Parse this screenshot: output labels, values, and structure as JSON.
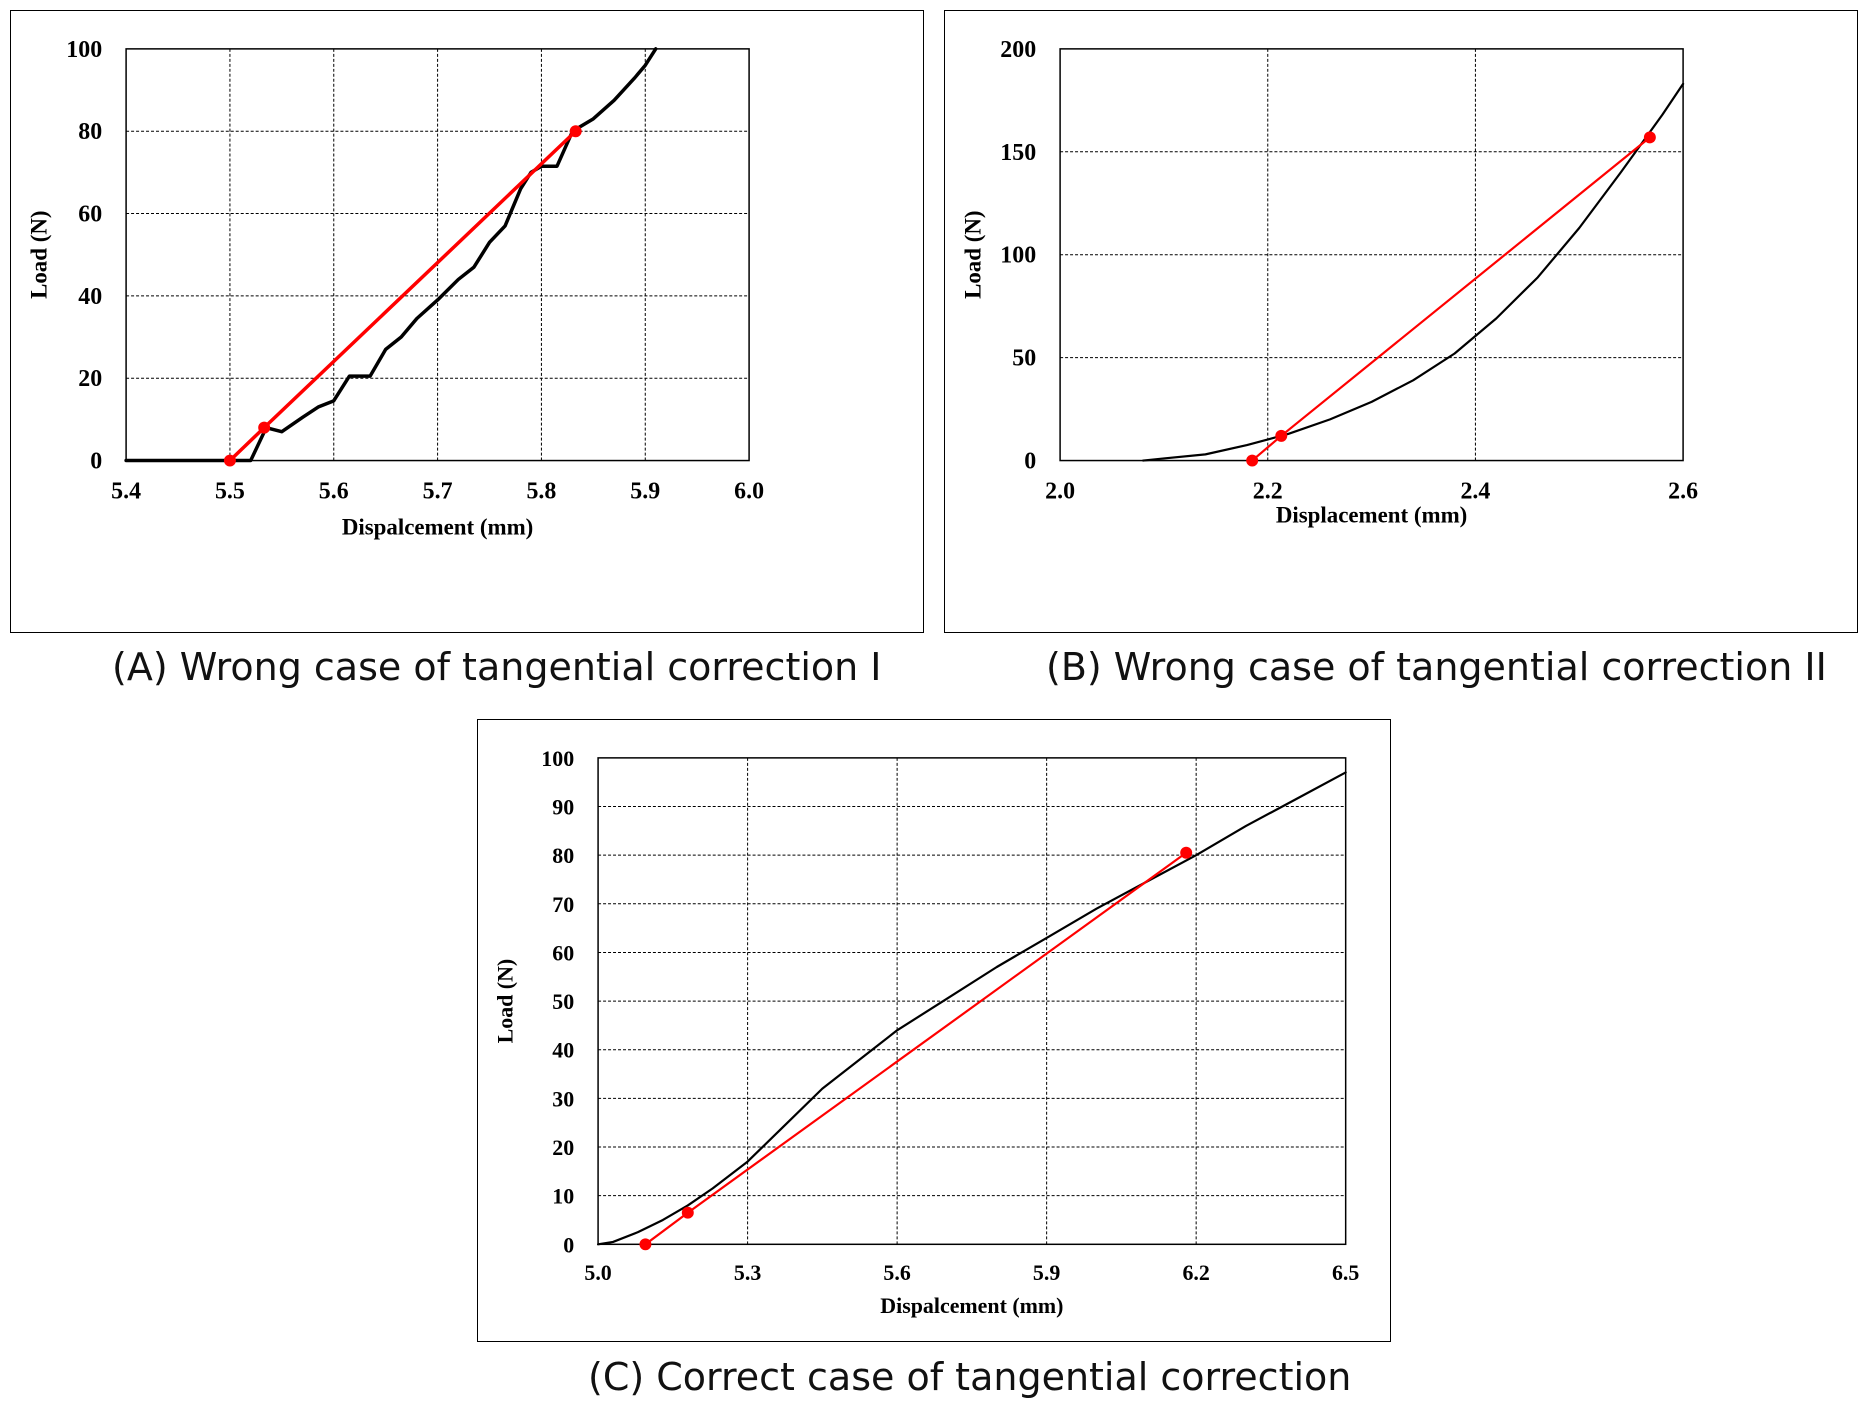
{
  "colors": {
    "curve": "#000000",
    "tangent": "#ff0000",
    "grid": "#000000"
  },
  "chart_data": [
    {
      "id": "a",
      "type": "line",
      "caption": "(A) Wrong case of tangential correction I",
      "xlabel": "Dispalcement   (mm)",
      "ylabel": "Load   (N)",
      "xlim": [
        5.4,
        6.0
      ],
      "ylim": [
        0,
        100
      ],
      "x_ticks": [
        5.4,
        5.5,
        5.6,
        5.7,
        5.8,
        5.9,
        6.0
      ],
      "x_tick_labels": [
        "5.4",
        "5.5",
        "5.6",
        "5.7",
        "5.8",
        "5.9",
        "6.0"
      ],
      "y_ticks": [
        0,
        20,
        40,
        60,
        80,
        100
      ],
      "y_tick_labels": [
        "0",
        "20",
        "40",
        "60",
        "80",
        "100"
      ],
      "grid": true,
      "series": [
        {
          "role": "curve",
          "x": [
            5.4,
            5.52,
            5.535,
            5.55,
            5.57,
            5.585,
            5.6,
            5.615,
            5.635,
            5.65,
            5.665,
            5.68,
            5.7,
            5.72,
            5.735,
            5.75,
            5.765,
            5.78,
            5.79,
            5.8,
            5.815,
            5.83,
            5.85,
            5.87,
            5.89,
            5.9,
            5.91
          ],
          "y": [
            0,
            0,
            8,
            7,
            10.5,
            13,
            14.5,
            20.5,
            20.5,
            27,
            30,
            34.5,
            39,
            44,
            47,
            53,
            57,
            66,
            70,
            71.5,
            71.5,
            80,
            83,
            87.5,
            93,
            96,
            100
          ]
        },
        {
          "role": "tangent",
          "x": [
            5.5,
            5.533,
            5.833
          ],
          "y": [
            0,
            8,
            80
          ],
          "markers": [
            true,
            true,
            true
          ]
        }
      ]
    },
    {
      "id": "b",
      "type": "line",
      "caption": "(B) Wrong case of tangential correction II",
      "xlabel": "Displacement  (mm)",
      "ylabel": "Load (N)",
      "xlim": [
        2.0,
        2.6
      ],
      "ylim": [
        0,
        200
      ],
      "x_ticks": [
        2.0,
        2.2,
        2.4,
        2.6
      ],
      "x_tick_labels": [
        "2.0",
        "2.2",
        "2.4",
        "2.6"
      ],
      "y_ticks": [
        0,
        50,
        100,
        150,
        200
      ],
      "y_tick_labels": [
        "0",
        "50",
        "100",
        "150",
        "200"
      ],
      "grid": true,
      "series": [
        {
          "role": "curve",
          "x": [
            2.08,
            2.1,
            2.14,
            2.18,
            2.22,
            2.26,
            2.3,
            2.34,
            2.38,
            2.42,
            2.46,
            2.5,
            2.54,
            2.58,
            2.6
          ],
          "y": [
            0,
            1,
            3,
            7.5,
            13,
            20,
            28.5,
            39,
            52,
            69,
            89,
            113,
            140,
            168,
            183
          ]
        },
        {
          "role": "tangent",
          "x": [
            2.185,
            2.213,
            2.568
          ],
          "y": [
            0,
            12,
            157
          ],
          "markers": [
            true,
            true,
            true
          ]
        }
      ]
    },
    {
      "id": "c",
      "type": "line",
      "caption": "(C) Correct case of tangential correction",
      "xlabel": "Dispalcement (mm)",
      "ylabel": "Load (N)",
      "xlim": [
        5.0,
        6.5
      ],
      "ylim": [
        0,
        100
      ],
      "x_ticks": [
        5.0,
        5.3,
        5.6,
        5.9,
        6.2,
        6.5
      ],
      "x_tick_labels": [
        "5.0",
        "5.3",
        "5.6",
        "5.9",
        "6.2",
        "6.5"
      ],
      "y_ticks": [
        0,
        10,
        20,
        30,
        40,
        50,
        60,
        70,
        80,
        90,
        100
      ],
      "y_tick_labels": [
        "0",
        "10",
        "20",
        "30",
        "40",
        "50",
        "60",
        "70",
        "80",
        "90",
        "100"
      ],
      "grid": true,
      "series": [
        {
          "role": "curve",
          "x": [
            5.0,
            5.03,
            5.08,
            5.13,
            5.18,
            5.23,
            5.3,
            5.37,
            5.45,
            5.55,
            5.6,
            5.7,
            5.8,
            5.9,
            6.0,
            6.1,
            6.2,
            6.3,
            6.4,
            6.5
          ],
          "y": [
            0,
            0.5,
            2.5,
            5,
            8,
            11.5,
            17,
            24,
            32,
            40,
            44,
            50.5,
            57,
            63,
            69,
            74.5,
            80,
            86,
            91.5,
            97
          ]
        },
        {
          "role": "tangent",
          "x": [
            5.095,
            5.18,
            6.18
          ],
          "y": [
            0,
            6.5,
            80.5
          ],
          "markers": [
            true,
            true,
            true
          ]
        }
      ]
    }
  ]
}
